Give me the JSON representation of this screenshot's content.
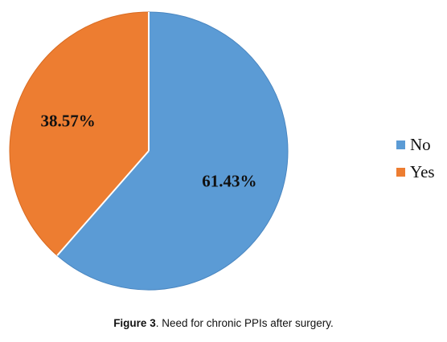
{
  "chart_data": {
    "type": "pie",
    "categories": [
      "No",
      "Yes"
    ],
    "values": [
      61.43,
      38.57
    ],
    "data_labels": [
      "61.43%",
      "38.57%"
    ],
    "colors": [
      "#5b9bd5",
      "#ed7d31"
    ],
    "legend_position": "right",
    "title": ""
  },
  "caption": {
    "label": "Figure 3",
    "text": ". Need for chronic PPIs after surgery."
  }
}
